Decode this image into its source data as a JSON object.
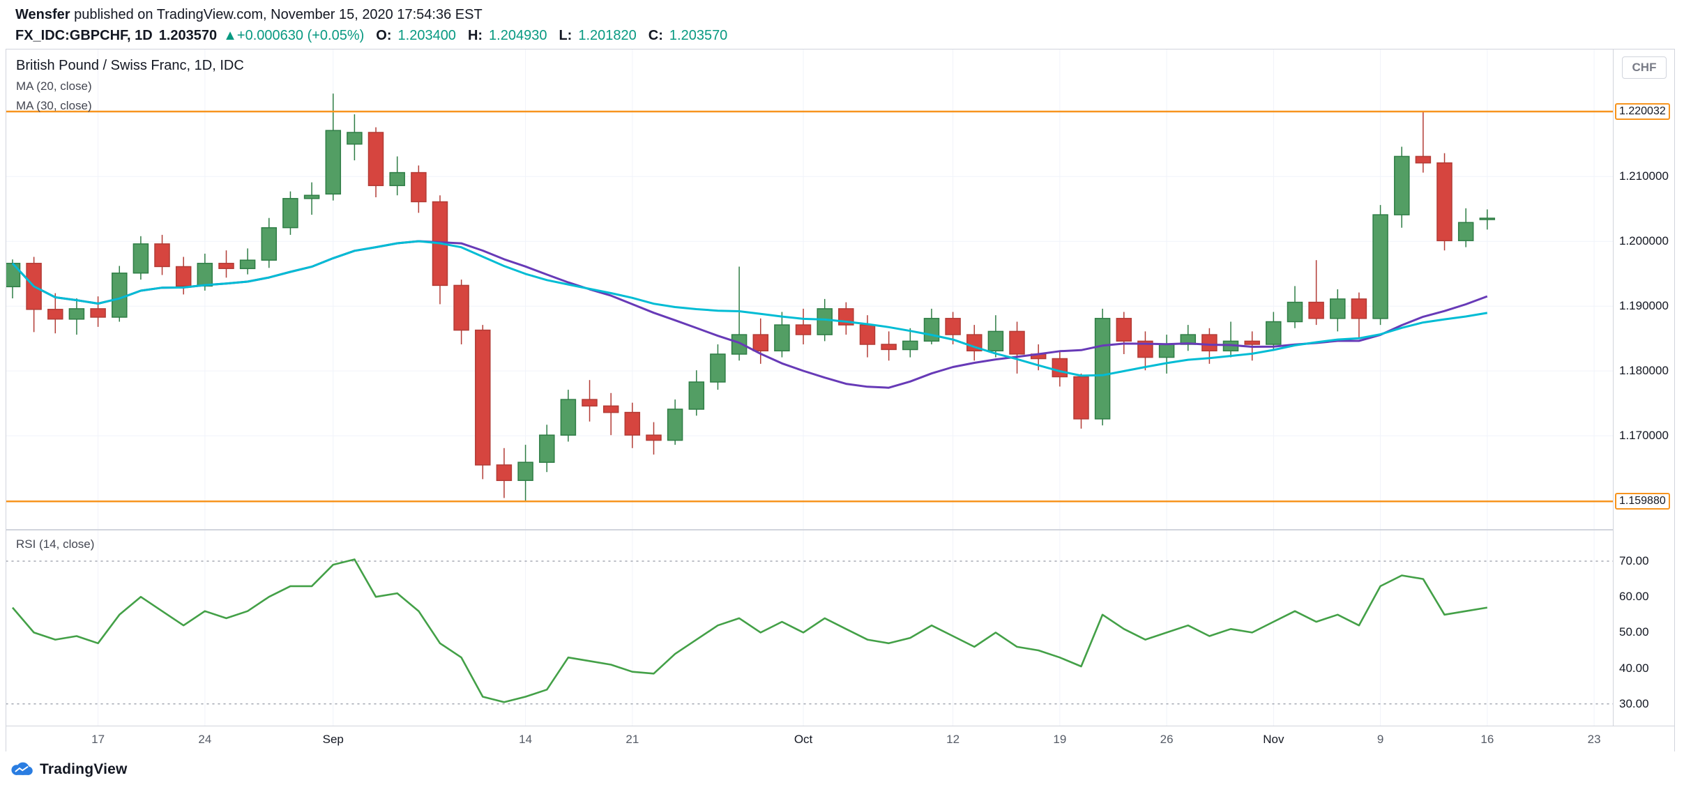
{
  "header": {
    "author": "Wensfer",
    "published_text": "published on TradingView.com, November 15, 2020 17:54:36 EST",
    "symbol": "FX_IDC:GBPCHF, 1D",
    "last_price": "1.203570",
    "change": "▲+0.000630 (+0.05%)",
    "change_color": "#089981",
    "ohlc": [
      {
        "label": "O:",
        "value": "1.203400"
      },
      {
        "label": "H:",
        "value": "1.204930"
      },
      {
        "label": "L:",
        "value": "1.201820"
      },
      {
        "label": "C:",
        "value": "1.203570"
      }
    ]
  },
  "chart": {
    "title": "British Pound / Swiss Franc, 1D, IDC",
    "currency_button": "CHF"
  },
  "footer": {
    "brand": "TradingView",
    "brand_color": "#2a7de1"
  },
  "chart_data": {
    "type": "candlestick",
    "title": "British Pound / Swiss Franc, 1D, IDC",
    "symbol": "GBPCHF",
    "timeframe": "1D",
    "ylim": [
      1.1556,
      1.2296
    ],
    "price_gridlines": [
      1.21,
      1.2,
      1.19,
      1.18,
      1.17
    ],
    "colors": {
      "up": "#539e64",
      "up_border": "#2e7d45",
      "down": "#d6453f",
      "down_border": "#b23b35",
      "grid": "#f0f3fa"
    },
    "horizontal_lines": [
      {
        "price": 1.220032,
        "label": "1.220032",
        "color": "#f7941e"
      },
      {
        "price": 1.15988,
        "label": "1.159880",
        "color": "#f7941e"
      }
    ],
    "x_ticks": [
      {
        "label": "17",
        "index": 4
      },
      {
        "label": "24",
        "index": 9
      },
      {
        "label": "Sep",
        "index": 15,
        "major": true
      },
      {
        "label": "14",
        "index": 24
      },
      {
        "label": "21",
        "index": 29
      },
      {
        "label": "Oct",
        "index": 37,
        "major": true
      },
      {
        "label": "12",
        "index": 44
      },
      {
        "label": "19",
        "index": 49
      },
      {
        "label": "26",
        "index": 54
      },
      {
        "label": "Nov",
        "index": 59,
        "major": true
      },
      {
        "label": "9",
        "index": 64
      },
      {
        "label": "16",
        "index": 69
      },
      {
        "label": "23",
        "index": 74,
        "major": false
      }
    ],
    "ohlc_format": [
      "open",
      "high",
      "low",
      "close"
    ],
    "candles": [
      [
        1.193,
        1.1972,
        1.1912,
        1.1966
      ],
      [
        1.1966,
        1.1976,
        1.186,
        1.1895
      ],
      [
        1.1895,
        1.192,
        1.1858,
        1.188
      ],
      [
        1.188,
        1.1912,
        1.1856,
        1.1896
      ],
      [
        1.1896,
        1.1915,
        1.1868,
        1.1883
      ],
      [
        1.1883,
        1.1962,
        1.1876,
        1.1951
      ],
      [
        1.1951,
        1.2008,
        1.1941,
        1.1996
      ],
      [
        1.1996,
        1.201,
        1.1948,
        1.1961
      ],
      [
        1.1961,
        1.1976,
        1.1918,
        1.1931
      ],
      [
        1.1931,
        1.1981,
        1.1924,
        1.1966
      ],
      [
        1.1966,
        1.1986,
        1.1944,
        1.1958
      ],
      [
        1.1958,
        1.1989,
        1.1949,
        1.1971
      ],
      [
        1.1971,
        1.2036,
        1.1959,
        1.2021
      ],
      [
        1.2021,
        1.2077,
        1.201,
        1.2066
      ],
      [
        1.2066,
        1.2091,
        1.2041,
        1.2071
      ],
      [
        1.2073,
        1.2228,
        1.2063,
        1.2171
      ],
      [
        1.215,
        1.2196,
        1.2125,
        1.2168
      ],
      [
        1.2168,
        1.2176,
        1.2068,
        1.2086
      ],
      [
        1.2086,
        1.2131,
        1.2071,
        1.2106
      ],
      [
        1.2106,
        1.2117,
        1.2044,
        1.2061
      ],
      [
        1.2061,
        1.2071,
        1.1903,
        1.1932
      ],
      [
        1.1932,
        1.1941,
        1.1841,
        1.1863
      ],
      [
        1.1863,
        1.1871,
        1.1633,
        1.1655
      ],
      [
        1.1655,
        1.1681,
        1.1604,
        1.1631
      ],
      [
        1.1631,
        1.1686,
        1.1599,
        1.1659
      ],
      [
        1.1659,
        1.1717,
        1.1644,
        1.1701
      ],
      [
        1.1701,
        1.1771,
        1.1691,
        1.1756
      ],
      [
        1.1756,
        1.1786,
        1.1722,
        1.1746
      ],
      [
        1.1746,
        1.1766,
        1.1701,
        1.1736
      ],
      [
        1.1736,
        1.1751,
        1.1681,
        1.1701
      ],
      [
        1.1701,
        1.1721,
        1.1671,
        1.1693
      ],
      [
        1.1693,
        1.1756,
        1.1686,
        1.1741
      ],
      [
        1.1741,
        1.1801,
        1.1731,
        1.1783
      ],
      [
        1.1783,
        1.1841,
        1.1771,
        1.1826
      ],
      [
        1.1826,
        1.1961,
        1.1816,
        1.1856
      ],
      [
        1.1856,
        1.1881,
        1.1811,
        1.1831
      ],
      [
        1.1831,
        1.1891,
        1.1821,
        1.1871
      ],
      [
        1.1871,
        1.1896,
        1.1841,
        1.1856
      ],
      [
        1.1856,
        1.1911,
        1.1846,
        1.1896
      ],
      [
        1.1896,
        1.1906,
        1.1856,
        1.1871
      ],
      [
        1.1871,
        1.1886,
        1.1821,
        1.1841
      ],
      [
        1.1841,
        1.1861,
        1.1816,
        1.1833
      ],
      [
        1.1833,
        1.1866,
        1.1821,
        1.1846
      ],
      [
        1.1846,
        1.1896,
        1.1841,
        1.1881
      ],
      [
        1.1881,
        1.1891,
        1.1841,
        1.1856
      ],
      [
        1.1856,
        1.1871,
        1.1816,
        1.1831
      ],
      [
        1.1831,
        1.1886,
        1.1821,
        1.1861
      ],
      [
        1.1861,
        1.1876,
        1.1796,
        1.1826
      ],
      [
        1.1826,
        1.1841,
        1.1801,
        1.1819
      ],
      [
        1.1819,
        1.1831,
        1.1776,
        1.1791
      ],
      [
        1.1791,
        1.1796,
        1.1711,
        1.1726
      ],
      [
        1.1726,
        1.1896,
        1.1716,
        1.1881
      ],
      [
        1.1881,
        1.1891,
        1.1826,
        1.1846
      ],
      [
        1.1846,
        1.1861,
        1.1801,
        1.1821
      ],
      [
        1.1821,
        1.1856,
        1.1796,
        1.1841
      ],
      [
        1.1841,
        1.1871,
        1.1831,
        1.1856
      ],
      [
        1.1856,
        1.1866,
        1.1811,
        1.1831
      ],
      [
        1.1831,
        1.1876,
        1.1821,
        1.1846
      ],
      [
        1.1846,
        1.1861,
        1.1816,
        1.1841
      ],
      [
        1.1841,
        1.1891,
        1.1831,
        1.1876
      ],
      [
        1.1876,
        1.1931,
        1.1866,
        1.1906
      ],
      [
        1.1906,
        1.1971,
        1.1871,
        1.1881
      ],
      [
        1.1881,
        1.1926,
        1.1861,
        1.1911
      ],
      [
        1.1911,
        1.1921,
        1.1851,
        1.1881
      ],
      [
        1.1881,
        1.2056,
        1.1871,
        1.2041
      ],
      [
        1.2041,
        1.2146,
        1.2021,
        1.2131
      ],
      [
        1.2131,
        1.2201,
        1.2106,
        1.2121
      ],
      [
        1.2121,
        1.2136,
        1.1986,
        1.2001
      ],
      [
        1.2001,
        1.2051,
        1.1991,
        1.2029
      ],
      [
        1.2034,
        1.20493,
        1.20182,
        1.20357
      ]
    ],
    "overlays": [
      {
        "name": "MA (20, close)",
        "period": 20,
        "color": "#673ab7"
      },
      {
        "name": "MA (30, close)",
        "period": 30,
        "color": "#00bcd4"
      }
    ],
    "rsi": {
      "name": "RSI (14, close)",
      "color": "#43a047",
      "ylim": [
        23.9,
        78.6
      ],
      "gridlines": [
        70,
        60,
        50,
        40,
        30
      ],
      "dashed_levels": [
        70,
        30
      ],
      "values": [
        57,
        50,
        48,
        49,
        47,
        55,
        60,
        56,
        52,
        56,
        54,
        56,
        60,
        63,
        63,
        69,
        70.5,
        60,
        61,
        56,
        47,
        43,
        32,
        30.5,
        32,
        34,
        43,
        42,
        41,
        39,
        38.5,
        44,
        48,
        52,
        54,
        50,
        53,
        50,
        54,
        51,
        48,
        47,
        48.5,
        52,
        49,
        46,
        50,
        46,
        45,
        43,
        40.5,
        55,
        51,
        48,
        50,
        52,
        49,
        51,
        50,
        53,
        56,
        53,
        55,
        52,
        63,
        66,
        65,
        55,
        56,
        57
      ]
    }
  }
}
